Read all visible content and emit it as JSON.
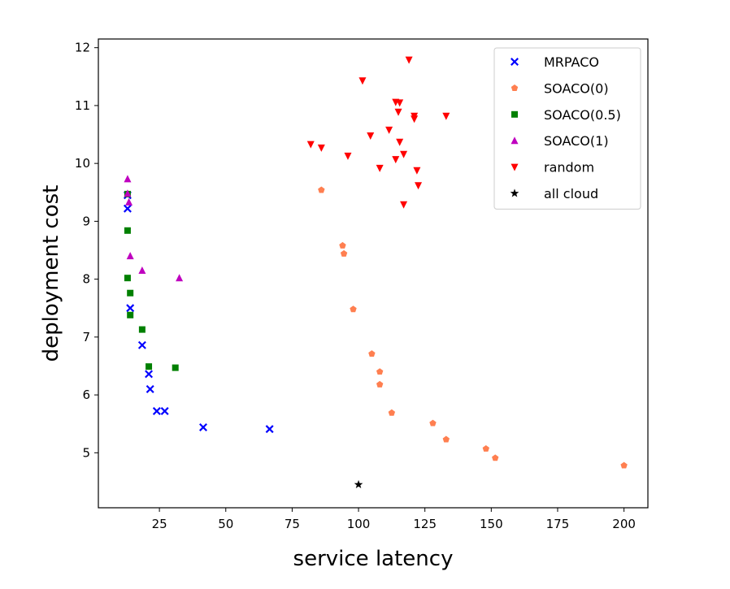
{
  "chart_data": {
    "type": "scatter",
    "title": "",
    "xlabel": "service latency",
    "ylabel": "deployment cost",
    "xlim": [
      2,
      209
    ],
    "ylim": [
      4.05,
      12.15
    ],
    "xticks": [
      25,
      50,
      75,
      100,
      125,
      150,
      175,
      200
    ],
    "yticks": [
      5,
      6,
      7,
      8,
      9,
      10,
      11,
      12
    ],
    "grid": false,
    "legend": "top-right",
    "series": [
      {
        "name": "MRPACO",
        "marker": "x",
        "color": "#0000ff",
        "points": [
          [
            13,
            9.22
          ],
          [
            13,
            9.45
          ],
          [
            14,
            7.5
          ],
          [
            18.5,
            6.86
          ],
          [
            21,
            6.36
          ],
          [
            21.5,
            6.1
          ],
          [
            24,
            5.72
          ],
          [
            27,
            5.72
          ],
          [
            41.5,
            5.44
          ],
          [
            66.5,
            5.41
          ]
        ]
      },
      {
        "name": "SOACO(0)",
        "marker": "pentagon",
        "color": "#ff7f50",
        "points": [
          [
            86,
            9.54
          ],
          [
            94,
            8.58
          ],
          [
            94.5,
            8.44
          ],
          [
            98,
            7.48
          ],
          [
            105,
            6.71
          ],
          [
            108,
            6.4
          ],
          [
            108,
            6.18
          ],
          [
            112.5,
            5.69
          ],
          [
            128,
            5.51
          ],
          [
            133,
            5.23
          ],
          [
            148,
            5.07
          ],
          [
            151.5,
            4.91
          ],
          [
            200,
            4.78
          ]
        ]
      },
      {
        "name": "SOACO(0.5)",
        "marker": "square",
        "color": "#008000",
        "points": [
          [
            13,
            9.47
          ],
          [
            13,
            8.84
          ],
          [
            13,
            8.02
          ],
          [
            14,
            7.76
          ],
          [
            14,
            7.38
          ],
          [
            18.5,
            7.13
          ],
          [
            21,
            6.49
          ],
          [
            31,
            6.47
          ]
        ]
      },
      {
        "name": "SOACO(1)",
        "marker": "triangle-up",
        "color": "#bf00bf",
        "points": [
          [
            13,
            9.73
          ],
          [
            13,
            9.48
          ],
          [
            13.5,
            9.33
          ],
          [
            14,
            8.4
          ],
          [
            18.5,
            8.15
          ],
          [
            32.5,
            8.02
          ]
        ]
      },
      {
        "name": "random",
        "marker": "triangle-down",
        "color": "#ff0000",
        "points": [
          [
            119,
            11.79
          ],
          [
            101.5,
            11.43
          ],
          [
            114,
            11.06
          ],
          [
            115.5,
            11.05
          ],
          [
            115,
            10.89
          ],
          [
            121,
            10.82
          ],
          [
            121,
            10.77
          ],
          [
            133,
            10.82
          ],
          [
            111.5,
            10.58
          ],
          [
            104.5,
            10.48
          ],
          [
            82,
            10.33
          ],
          [
            86,
            10.27
          ],
          [
            115.5,
            10.37
          ],
          [
            117,
            10.16
          ],
          [
            96,
            10.13
          ],
          [
            114,
            10.07
          ],
          [
            108,
            9.92
          ],
          [
            122,
            9.88
          ],
          [
            122.5,
            9.62
          ],
          [
            117,
            9.29
          ]
        ]
      },
      {
        "name": "all cloud",
        "marker": "star",
        "color": "#000000",
        "points": [
          [
            100,
            4.45
          ]
        ]
      }
    ]
  }
}
